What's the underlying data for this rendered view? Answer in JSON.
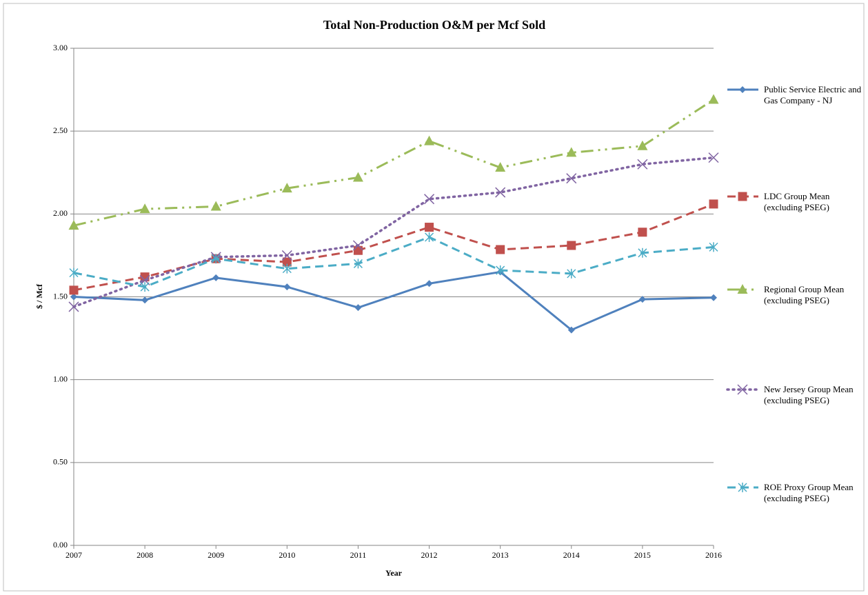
{
  "chart_data": {
    "type": "line",
    "title": "Total Non-Production O&M per Mcf Sold",
    "xlabel": "Year",
    "ylabel": "$ / Mcf",
    "categories": [
      "2007",
      "2008",
      "2009",
      "2010",
      "2011",
      "2012",
      "2013",
      "2014",
      "2015",
      "2016"
    ],
    "ylim": [
      0,
      3
    ],
    "yticks": [
      {
        "value": 0,
        "label": "0.00"
      },
      {
        "value": 0.5,
        "label": "0.50"
      },
      {
        "value": 1,
        "label": "1.00"
      },
      {
        "value": 1.5,
        "label": "1.50"
      },
      {
        "value": 2,
        "label": "2.00"
      },
      {
        "value": 2.5,
        "label": "2.50"
      },
      {
        "value": 3,
        "label": "3.00"
      }
    ],
    "grid": true,
    "legend": "right",
    "series": [
      {
        "name": "Public Service Electric and Gas Company - NJ",
        "color": "#4f81bd",
        "marker": "diamond",
        "line_style": "solid",
        "values": [
          1.5,
          1.48,
          1.615,
          1.56,
          1.435,
          1.58,
          1.65,
          1.3,
          1.485,
          1.495
        ]
      },
      {
        "name": "LDC Group Mean (excluding PSEG)",
        "color": "#c0504d",
        "marker": "square",
        "line_style": "dash",
        "values": [
          1.54,
          1.62,
          1.73,
          1.71,
          1.78,
          1.92,
          1.785,
          1.81,
          1.89,
          2.06
        ]
      },
      {
        "name": "Regional Group Mean (excluding PSEG)",
        "color": "#9bbb59",
        "marker": "triangle",
        "line_style": "dashdotdot",
        "values": [
          1.93,
          2.03,
          2.045,
          2.155,
          2.22,
          2.44,
          2.28,
          2.37,
          2.41,
          2.69
        ]
      },
      {
        "name": "New Jersey Group Mean (excluding PSEG)",
        "color": "#8064a2",
        "marker": "x",
        "line_style": "dot",
        "values": [
          1.44,
          1.6,
          1.74,
          1.75,
          1.81,
          2.09,
          2.13,
          2.215,
          2.3,
          2.34
        ]
      },
      {
        "name": "ROE Proxy Group Mean (excluding PSEG)",
        "color": "#4bacc6",
        "marker": "star",
        "line_style": "dash",
        "values": [
          1.645,
          1.56,
          1.73,
          1.67,
          1.7,
          1.86,
          1.66,
          1.64,
          1.765,
          1.8
        ]
      }
    ]
  }
}
